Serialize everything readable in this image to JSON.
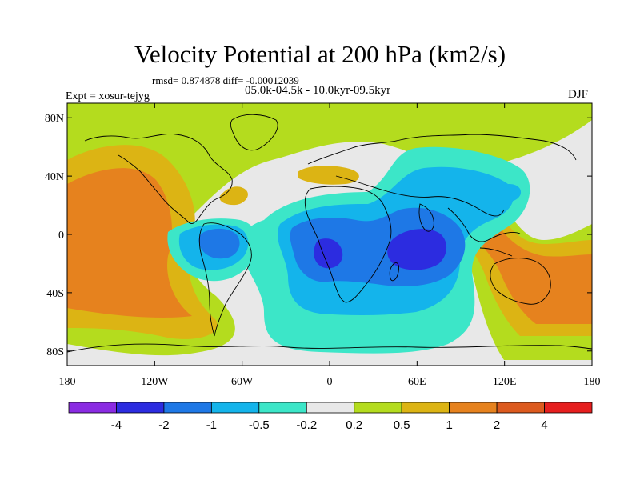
{
  "title": "Velocity Potential at 200 hPa (km2/s)",
  "stats": "rmsd= 0.874878 diff= -0.00012039",
  "experiment": "Expt = xosur-tejyg",
  "period": "05.0k-04.5k - 10.0kyr-09.5kyr",
  "season": "DJF",
  "x_ticks": [
    {
      "lon": -180,
      "label": "180"
    },
    {
      "lon": -120,
      "label": "120W"
    },
    {
      "lon": -60,
      "label": "60W"
    },
    {
      "lon": 0,
      "label": "0"
    },
    {
      "lon": 60,
      "label": "60E"
    },
    {
      "lon": 120,
      "label": "120E"
    },
    {
      "lon": 180,
      "label": "180"
    }
  ],
  "y_ticks": [
    {
      "lat": 80,
      "label": "80N"
    },
    {
      "lat": 40,
      "label": "40N"
    },
    {
      "lat": 0,
      "label": "0"
    },
    {
      "lat": -40,
      "label": "40S"
    },
    {
      "lat": -80,
      "label": "80S"
    }
  ],
  "colorbar": {
    "colors": [
      "#8a2be2",
      "#2c2ce0",
      "#1e78e6",
      "#14b4eb",
      "#3ce6c8",
      "#e8e8e8",
      "#b4dc1e",
      "#dcb414",
      "#e6821e",
      "#dc5a1e",
      "#e61e1e"
    ],
    "labels": [
      "-4",
      "-2",
      "-1",
      "-0.5",
      "-0.2",
      "0.2",
      "0.5",
      "1",
      "2",
      "4"
    ]
  },
  "colors": {
    "background": "#e8e8e8",
    "coast": "#000000"
  }
}
